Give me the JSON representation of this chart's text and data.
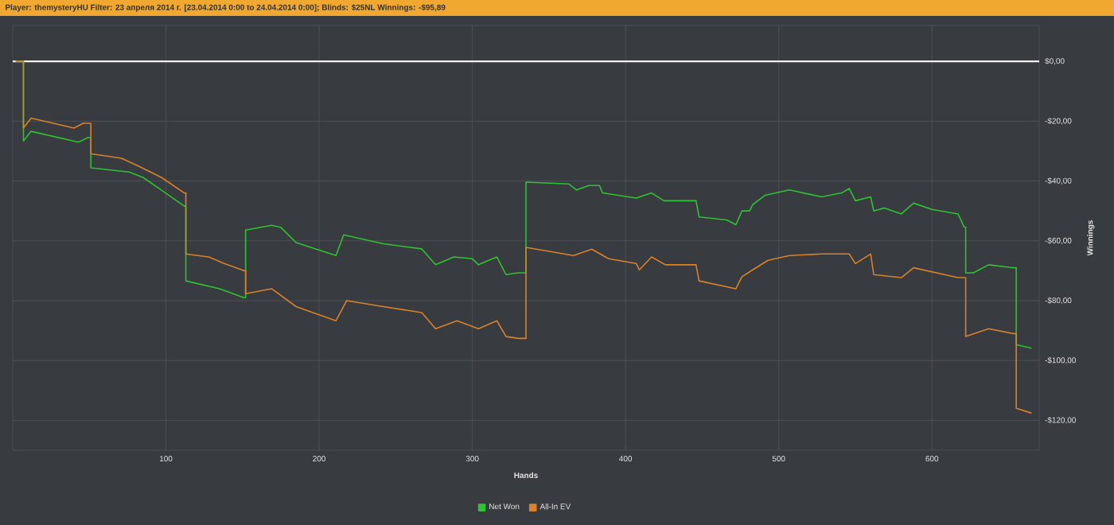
{
  "chart_data": {
    "type": "line",
    "title": "Player: themysteryHU Filter: 23 апреля 2014 г. [23.04.2014 0:00 to 24.04.2014 0:00]; Blinds: $25NL Winnings: -$95,89",
    "xlabel": "Hands",
    "ylabel": "Winnings",
    "xlim": [
      0,
      670
    ],
    "ylim": [
      -130,
      12
    ],
    "xticks": [
      100,
      200,
      300,
      400,
      500,
      600
    ],
    "yticks": [
      {
        "value": 0,
        "label": "$0,00"
      },
      {
        "value": -20,
        "label": "-$20,00"
      },
      {
        "value": -40,
        "label": "-$40,00"
      },
      {
        "value": -60,
        "label": "-$60,00"
      },
      {
        "value": -80,
        "label": "-$80,00"
      },
      {
        "value": -100,
        "label": "-$100,00"
      },
      {
        "value": -120,
        "label": "-$120,00"
      }
    ],
    "grid": true,
    "legend": "bottom",
    "ref_lines": [
      {
        "axis": "y",
        "value": 0,
        "color": "#f0f0f0"
      }
    ],
    "series": [
      {
        "name": "Net Won",
        "color": "#2fc232",
        "x": [
          2,
          7,
          7,
          12,
          43,
          49,
          51,
          51,
          76,
          85,
          97,
          112,
          113,
          113,
          135,
          151,
          152,
          152,
          169,
          175,
          185,
          211,
          216,
          242,
          267,
          276,
          288,
          300,
          304,
          316,
          322,
          330,
          335,
          335,
          363,
          368,
          376,
          383,
          385,
          407,
          417,
          425,
          446,
          448,
          466,
          472,
          476,
          481,
          483,
          491,
          507,
          528,
          541,
          546,
          550,
          560,
          562,
          569,
          580,
          588,
          600,
          617,
          621,
          622,
          622,
          627,
          637,
          653,
          655,
          655,
          665
        ],
        "values": [
          0,
          0,
          -26.6,
          -23.4,
          -27,
          -25.5,
          -25.5,
          -35.6,
          -37,
          -38.8,
          -43,
          -48.4,
          -48.4,
          -73.4,
          -76,
          -79,
          -79,
          -56.4,
          -54.8,
          -55.5,
          -60.6,
          -64.9,
          -58,
          -61,
          -62.7,
          -68,
          -65.4,
          -66,
          -68,
          -65.4,
          -71.3,
          -70.7,
          -70.7,
          -40.4,
          -41,
          -43,
          -41.5,
          -41.5,
          -44,
          -45.7,
          -44,
          -46.6,
          -46.6,
          -52,
          -53,
          -54.6,
          -50,
          -50,
          -47.9,
          -44.8,
          -43,
          -45.3,
          -44,
          -42.5,
          -46.6,
          -45.3,
          -50,
          -49,
          -51,
          -47.4,
          -49.5,
          -51,
          -55.4,
          -55.4,
          -70.7,
          -70.7,
          -68,
          -69,
          -69,
          -94.7,
          -95.9
        ]
      },
      {
        "name": "All-In EV",
        "color": "#d9822b",
        "x": [
          2,
          7,
          7,
          12,
          40,
          46,
          50,
          51,
          51,
          71,
          82,
          97,
          112,
          113,
          113,
          128,
          138,
          151,
          152,
          152,
          169,
          185,
          211,
          218,
          242,
          267,
          276,
          290,
          304,
          316,
          322,
          330,
          335,
          335,
          366,
          378,
          389,
          407,
          409,
          417,
          426,
          446,
          448,
          472,
          476,
          483,
          493,
          507,
          528,
          546,
          550,
          560,
          562,
          580,
          588,
          617,
          622,
          622,
          637,
          653,
          655,
          655,
          665
        ],
        "values": [
          0,
          0,
          -22.3,
          -19,
          -22.3,
          -20.7,
          -20.7,
          -20.7,
          -30.9,
          -32.4,
          -35,
          -38.8,
          -44,
          -44,
          -64.4,
          -65.4,
          -67.6,
          -70,
          -70,
          -77.7,
          -76,
          -82,
          -86.7,
          -80,
          -82,
          -84,
          -89.4,
          -86.7,
          -89.4,
          -86.7,
          -92,
          -92.6,
          -92.6,
          -62.2,
          -64.9,
          -62.8,
          -66,
          -67.6,
          -69.7,
          -65.4,
          -68,
          -68,
          -73.4,
          -76,
          -72,
          -69.7,
          -66.5,
          -64.9,
          -64.4,
          -64.4,
          -67.6,
          -64.4,
          -71.3,
          -72.3,
          -69,
          -72.3,
          -72.3,
          -92,
          -89.4,
          -91,
          -91,
          -116,
          -117.6
        ]
      }
    ]
  }
}
